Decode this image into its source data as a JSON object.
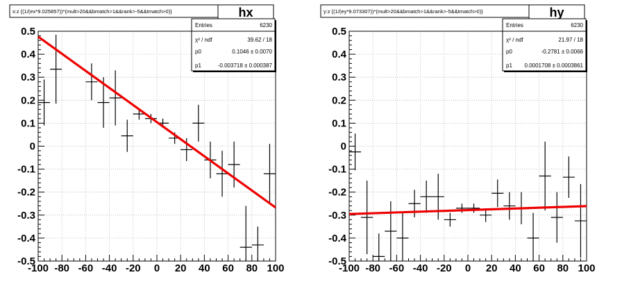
{
  "panels": [
    {
      "title": "x:z {(1/(ex*9.025857))*(mult>20&&bmatch>1&&rank>-5&&tmatch>0)}",
      "name": "hx",
      "stats": {
        "labels": [
          "Entries",
          "χ² / ndf",
          "p0",
          "p1"
        ],
        "values": [
          "6230",
          "39.62 / 18",
          "0.1046 ± 0.0070",
          "-0.003718 ± 0.000387"
        ]
      },
      "chart_data": {
        "type": "scatter",
        "xlim": [
          -100,
          100
        ],
        "ylim": [
          -0.5,
          0.5
        ],
        "x_ticks": [
          "-100",
          "-80",
          "-60",
          "-40",
          "-20",
          "0",
          "20",
          "40",
          "60",
          "80",
          "100"
        ],
        "y_ticks": [
          "-0.5",
          "-0.4",
          "-0.3",
          "-0.2",
          "-0.1",
          "0",
          "0.1",
          "0.2",
          "0.3",
          "0.4",
          "0.5"
        ],
        "grid": true,
        "points": [
          {
            "x": -95,
            "y": 0.19,
            "xerr": 5,
            "yerr": 0.1
          },
          {
            "x": -85,
            "y": 0.335,
            "xerr": 5,
            "yerr": 0.15
          },
          {
            "x": -55,
            "y": 0.28,
            "xerr": 5,
            "yerr": 0.08
          },
          {
            "x": -45,
            "y": 0.19,
            "xerr": 5,
            "yerr": 0.11
          },
          {
            "x": -35,
            "y": 0.21,
            "xerr": 5,
            "yerr": 0.12
          },
          {
            "x": -25,
            "y": 0.045,
            "xerr": 5,
            "yerr": 0.07
          },
          {
            "x": -15,
            "y": 0.14,
            "xerr": 5,
            "yerr": 0.025
          },
          {
            "x": -5,
            "y": 0.12,
            "xerr": 5,
            "yerr": 0.02
          },
          {
            "x": 5,
            "y": 0.1,
            "xerr": 5,
            "yerr": 0.02
          },
          {
            "x": 15,
            "y": 0.035,
            "xerr": 5,
            "yerr": 0.025
          },
          {
            "x": 25,
            "y": -0.015,
            "xerr": 5,
            "yerr": 0.05
          },
          {
            "x": 35,
            "y": 0.1,
            "xerr": 5,
            "yerr": 0.08
          },
          {
            "x": 45,
            "y": -0.06,
            "xerr": 5,
            "yerr": 0.08
          },
          {
            "x": 55,
            "y": -0.12,
            "xerr": 5,
            "yerr": 0.1
          },
          {
            "x": 65,
            "y": -0.08,
            "xerr": 5,
            "yerr": 0.1
          },
          {
            "x": 75,
            "y": -0.44,
            "xerr": 5,
            "yerr": 0.18
          },
          {
            "x": 85,
            "y": -0.43,
            "xerr": 5,
            "yerr": 0.08
          },
          {
            "x": 95,
            "y": -0.12,
            "xerr": 5,
            "yerr": 0.13
          }
        ],
        "fit": {
          "p0": 0.1046,
          "p1": -0.003718
        }
      }
    },
    {
      "title": "y:z {(1/(ey*9.073307))*(mult>20&&bmatch>1&&rank>-5&&tmatch>0)}",
      "name": "hy",
      "stats": {
        "labels": [
          "Entries",
          "χ² / ndf",
          "p0",
          "p1"
        ],
        "values": [
          "6230",
          "21.97 / 18",
          "-0.2781 ± 0.0066",
          "0.0001708 ± 0.0003861"
        ]
      },
      "chart_data": {
        "type": "scatter",
        "xlim": [
          -100,
          100
        ],
        "ylim": [
          -0.5,
          0.5
        ],
        "x_ticks": [
          "-100",
          "-80",
          "-60",
          "-40",
          "-20",
          "0",
          "20",
          "40",
          "60",
          "80",
          "100"
        ],
        "y_ticks": [
          "-0.5",
          "-0.4",
          "-0.3",
          "-0.2",
          "-0.1",
          "0",
          "0.1",
          "0.2",
          "0.3",
          "0.4",
          "0.5"
        ],
        "grid": true,
        "points": [
          {
            "x": -95,
            "y": -0.025,
            "xerr": 5,
            "yerr": 0.08
          },
          {
            "x": -85,
            "y": -0.31,
            "xerr": 5,
            "yerr": 0.16
          },
          {
            "x": -75,
            "y": -0.48,
            "xerr": 5,
            "yerr": 0.1
          },
          {
            "x": -65,
            "y": -0.37,
            "xerr": 5,
            "yerr": 0.13
          },
          {
            "x": -55,
            "y": -0.4,
            "xerr": 5,
            "yerr": 0.11
          },
          {
            "x": -45,
            "y": -0.25,
            "xerr": 5,
            "yerr": 0.06
          },
          {
            "x": -35,
            "y": -0.22,
            "xerr": 5,
            "yerr": 0.07
          },
          {
            "x": -25,
            "y": -0.22,
            "xerr": 5,
            "yerr": 0.1
          },
          {
            "x": -15,
            "y": -0.32,
            "xerr": 5,
            "yerr": 0.03
          },
          {
            "x": -5,
            "y": -0.27,
            "xerr": 5,
            "yerr": 0.02
          },
          {
            "x": 5,
            "y": -0.27,
            "xerr": 5,
            "yerr": 0.02
          },
          {
            "x": 15,
            "y": -0.3,
            "xerr": 5,
            "yerr": 0.03
          },
          {
            "x": 25,
            "y": -0.205,
            "xerr": 5,
            "yerr": 0.06
          },
          {
            "x": 35,
            "y": -0.26,
            "xerr": 5,
            "yerr": 0.06
          },
          {
            "x": 45,
            "y": -0.27,
            "xerr": 5,
            "yerr": 0.07
          },
          {
            "x": 55,
            "y": -0.4,
            "xerr": 5,
            "yerr": 0.11
          },
          {
            "x": 65,
            "y": -0.13,
            "xerr": 5,
            "yerr": 0.15
          },
          {
            "x": 75,
            "y": -0.31,
            "xerr": 5,
            "yerr": 0.11
          },
          {
            "x": 85,
            "y": -0.135,
            "xerr": 5,
            "yerr": 0.09
          },
          {
            "x": 95,
            "y": -0.325,
            "xerr": 5,
            "yerr": 0.16
          }
        ],
        "fit": {
          "p0": -0.2781,
          "p1": 0.0001708
        }
      }
    }
  ]
}
